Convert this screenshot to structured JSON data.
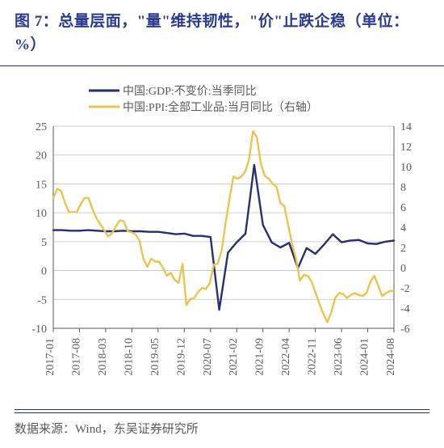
{
  "title": "图 7：总量层面，\"量\"维持韧性，\"价\"止跌企稳（单位：%）",
  "source": "数据来源：Wind，东吴证券研究所",
  "chart": {
    "type": "line-dual-axis",
    "background_color": "#ffffff",
    "grid_color": "#bfbfbf",
    "axis_color": "#595959",
    "tick_fontsize": 14,
    "x_labels": [
      "2017-01",
      "2017-08",
      "2018-03",
      "2018-10",
      "2019-05",
      "2019-12",
      "2020-07",
      "2021-02",
      "2021-09",
      "2022-04",
      "2022-11",
      "2023-06",
      "2024-01",
      "2024-08"
    ],
    "left_axis": {
      "min": -10,
      "max": 25,
      "step": 5,
      "ticks": [
        -10,
        -5,
        0,
        5,
        10,
        15,
        20,
        25
      ]
    },
    "right_axis": {
      "min": -6,
      "max": 14,
      "step": 2,
      "ticks": [
        -6,
        -4,
        -2,
        0,
        2,
        4,
        6,
        8,
        10,
        12,
        14
      ]
    },
    "series": [
      {
        "name": "中国:GDP:不变价:当季同比",
        "axis": "left",
        "color": "#262f70",
        "line_width": 2.4,
        "data": [
          7.0,
          7.0,
          6.9,
          6.9,
          7.0,
          6.9,
          6.8,
          6.8,
          6.9,
          6.8,
          6.8,
          6.7,
          6.7,
          6.5,
          6.3,
          6.4,
          6.0,
          6.0,
          5.8,
          -6.8,
          3.1,
          4.9,
          6.4,
          18.3,
          7.9,
          4.9,
          4.0,
          4.8,
          0.4,
          3.9,
          2.9,
          4.5,
          6.3,
          4.9,
          5.2,
          5.3,
          4.7,
          4.6,
          5.0,
          5.2
        ]
      },
      {
        "name": "中国:PPI:全部工业品:当月同比（右轴）",
        "axis": "right",
        "color": "#e8c550",
        "line_width": 2.4,
        "data": [
          6.9,
          7.8,
          7.6,
          6.4,
          5.5,
          5.5,
          5.5,
          6.3,
          6.9,
          6.9,
          5.8,
          4.9,
          4.3,
          3.7,
          3.1,
          3.4,
          4.1,
          4.7,
          4.6,
          3.6,
          3.5,
          3.3,
          2.7,
          0.9,
          0.1,
          0.9,
          0.6,
          0.6,
          0.0,
          -0.8,
          -0.5,
          -1.2,
          -1.5,
          0.4,
          -3.7,
          -3.1,
          -3.0,
          -2.4,
          -2.0,
          -2.1,
          -1.5,
          0.3,
          0.4,
          1.7,
          4.4,
          6.8,
          9.0,
          8.8,
          9.0,
          9.5,
          10.7,
          13.5,
          12.9,
          10.3,
          9.1,
          8.8,
          8.3,
          8.0,
          6.4,
          6.1,
          4.2,
          2.3,
          0.9,
          -1.3,
          -0.7,
          -0.8,
          -1.4,
          -2.5,
          -3.6,
          -4.6,
          -5.4,
          -4.4,
          -3.0,
          -2.5,
          -2.6,
          -3.0,
          -2.7,
          -2.5,
          -2.7,
          -2.8,
          -2.5,
          -1.4,
          -0.8,
          -1.8,
          -2.8,
          -2.5,
          -2.3,
          -2.3
        ]
      }
    ],
    "legend": {
      "items": [
        "中国:GDP:不变价:当季同比",
        "中国:PPI:全部工业品:当月同比（右轴）"
      ]
    }
  }
}
